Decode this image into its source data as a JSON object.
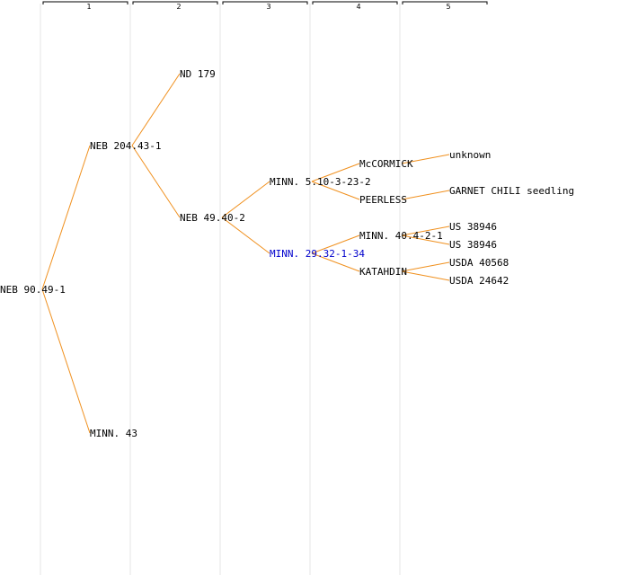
{
  "generations": [
    "1",
    "2",
    "3",
    "4",
    "5"
  ],
  "nodes": [
    {
      "id": "n0",
      "label": "NEB 90.49-1",
      "gen": 0,
      "parent": null
    },
    {
      "id": "n1",
      "label": "NEB 204.43-1",
      "gen": 1,
      "parent": "n0"
    },
    {
      "id": "n2",
      "label": "MINN. 43",
      "gen": 1,
      "parent": "n0"
    },
    {
      "id": "n3",
      "label": "ND 179",
      "gen": 2,
      "parent": "n1"
    },
    {
      "id": "n4",
      "label": "NEB 49.40-2",
      "gen": 2,
      "parent": "n1"
    },
    {
      "id": "n5",
      "label": "MINN. 5.10-3-23-2",
      "gen": 3,
      "parent": "n4"
    },
    {
      "id": "n6",
      "label": "MINN. 29.32-1-34",
      "gen": 3,
      "parent": "n4",
      "highlight": true
    },
    {
      "id": "n7",
      "label": "McCORMICK",
      "gen": 4,
      "parent": "n5"
    },
    {
      "id": "n8",
      "label": "PEERLESS",
      "gen": 4,
      "parent": "n5"
    },
    {
      "id": "n9",
      "label": "MINN. 40.4-2-1",
      "gen": 4,
      "parent": "n6"
    },
    {
      "id": "n10",
      "label": "KATAHDIN",
      "gen": 4,
      "parent": "n6"
    },
    {
      "id": "n11",
      "label": "unknown",
      "gen": 5,
      "parent": "n7"
    },
    {
      "id": "n12",
      "label": "GARNET CHILI seedling",
      "gen": 5,
      "parent": "n8"
    },
    {
      "id": "n13",
      "label": "US 38946",
      "gen": 5,
      "parent": "n9"
    },
    {
      "id": "n14",
      "label": "US 38946",
      "gen": 5,
      "parent": "n9"
    },
    {
      "id": "n15",
      "label": "USDA 40568",
      "gen": 5,
      "parent": "n10"
    },
    {
      "id": "n16",
      "label": "USDA 24642",
      "gen": 5,
      "parent": "n10"
    }
  ],
  "colors": {
    "edge": "#f0901e",
    "highlight_text": "#0000cc",
    "grid": "#e6e6e6",
    "text": "#000000"
  }
}
